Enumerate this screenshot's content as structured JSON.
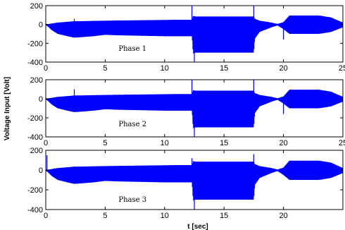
{
  "chart_data": {
    "type": "line",
    "xlabel": "t [sec]",
    "ylabel": "Voltage Input [Volt]",
    "xlim": [
      0,
      25
    ],
    "ylim": [
      -400,
      200
    ],
    "xticks": [
      0,
      5,
      10,
      15,
      20,
      25
    ],
    "yticks": [
      200,
      0,
      -200,
      -400
    ],
    "grid": false,
    "line_color": "#0000ff",
    "panels": [
      {
        "label": "Phase 1",
        "xtick_labels": [
          "0",
          "5",
          "10",
          "15",
          "20",
          "25"
        ],
        "envelope": {
          "t": [
            0,
            0.5,
            1,
            2,
            2.4,
            3,
            4,
            5,
            6,
            8,
            10,
            11,
            12,
            12.3,
            12.4,
            12.6,
            13,
            15,
            17,
            17.5,
            17.6,
            18,
            19,
            19.5,
            20,
            20.5,
            22,
            23,
            24,
            25
          ],
          "upper": [
            0,
            10,
            20,
            30,
            35,
            35,
            38,
            40,
            42,
            45,
            48,
            50,
            50,
            50,
            90,
            85,
            85,
            85,
            85,
            85,
            60,
            40,
            20,
            5,
            25,
            95,
            95,
            95,
            75,
            20
          ],
          "lower": [
            0,
            -60,
            -100,
            -130,
            -140,
            -135,
            -125,
            -110,
            -115,
            -120,
            -125,
            -125,
            -125,
            -125,
            -310,
            -300,
            -300,
            -300,
            -300,
            -300,
            -150,
            -80,
            -30,
            -10,
            -50,
            -100,
            -100,
            -100,
            -80,
            -30
          ]
        },
        "spikes": [
          {
            "t": 2.4,
            "y": 60
          },
          {
            "t": 12.3,
            "y": 210
          },
          {
            "t": 12.5,
            "y": -400
          },
          {
            "t": 17.5,
            "y": 210
          },
          {
            "t": 20.0,
            "y": -160
          }
        ]
      },
      {
        "label": "Phase 2",
        "xtick_labels": [
          "0",
          "5",
          "10",
          "15",
          "20",
          "25"
        ],
        "envelope": {
          "t": [
            0,
            0.5,
            1,
            2,
            2.4,
            3,
            4,
            5,
            6,
            8,
            10,
            11,
            12,
            12.3,
            12.4,
            12.6,
            13,
            15,
            17,
            17.5,
            17.6,
            18,
            19,
            19.5,
            20,
            20.5,
            22,
            23,
            24,
            25
          ],
          "upper": [
            0,
            10,
            20,
            30,
            35,
            35,
            38,
            40,
            42,
            45,
            48,
            50,
            50,
            50,
            90,
            85,
            85,
            85,
            85,
            85,
            60,
            40,
            20,
            5,
            25,
            95,
            95,
            95,
            75,
            20
          ],
          "lower": [
            0,
            -60,
            -100,
            -130,
            -140,
            -135,
            -125,
            -110,
            -115,
            -120,
            -125,
            -125,
            -125,
            -125,
            -310,
            -300,
            -300,
            -300,
            -300,
            -300,
            -150,
            -80,
            -30,
            -10,
            -50,
            -100,
            -100,
            -100,
            -80,
            -30
          ]
        },
        "spikes": [
          {
            "t": 2.4,
            "y": 100
          },
          {
            "t": 12.3,
            "y": 210
          },
          {
            "t": 12.5,
            "y": -400
          },
          {
            "t": 17.5,
            "y": 210
          },
          {
            "t": 20.0,
            "y": -160
          }
        ]
      },
      {
        "label": "Phase 3",
        "xtick_labels": [
          "0",
          "5",
          "10",
          "15",
          "20",
          ""
        ],
        "envelope": {
          "t": [
            0,
            0.5,
            1,
            2,
            2.4,
            3,
            4,
            5,
            6,
            8,
            10,
            11,
            12,
            12.3,
            12.4,
            12.6,
            13,
            15,
            17,
            17.5,
            17.6,
            18,
            19,
            19.5,
            20,
            20.5,
            22,
            23,
            24,
            25
          ],
          "upper": [
            0,
            10,
            20,
            30,
            35,
            35,
            38,
            40,
            42,
            45,
            48,
            50,
            50,
            50,
            90,
            85,
            85,
            85,
            85,
            85,
            60,
            40,
            20,
            5,
            25,
            95,
            95,
            95,
            75,
            20
          ],
          "lower": [
            0,
            -60,
            -100,
            -130,
            -140,
            -135,
            -125,
            -110,
            -115,
            -120,
            -125,
            -125,
            -125,
            -125,
            -310,
            -300,
            -300,
            -300,
            -300,
            -300,
            -150,
            -80,
            -30,
            -10,
            -50,
            -100,
            -100,
            -100,
            -80,
            -30
          ]
        },
        "spikes": [
          {
            "t": 0.1,
            "y": 150
          },
          {
            "t": 12.3,
            "y": 120
          },
          {
            "t": 12.5,
            "y": -400
          },
          {
            "t": 17.5,
            "y": 160
          }
        ]
      }
    ]
  }
}
